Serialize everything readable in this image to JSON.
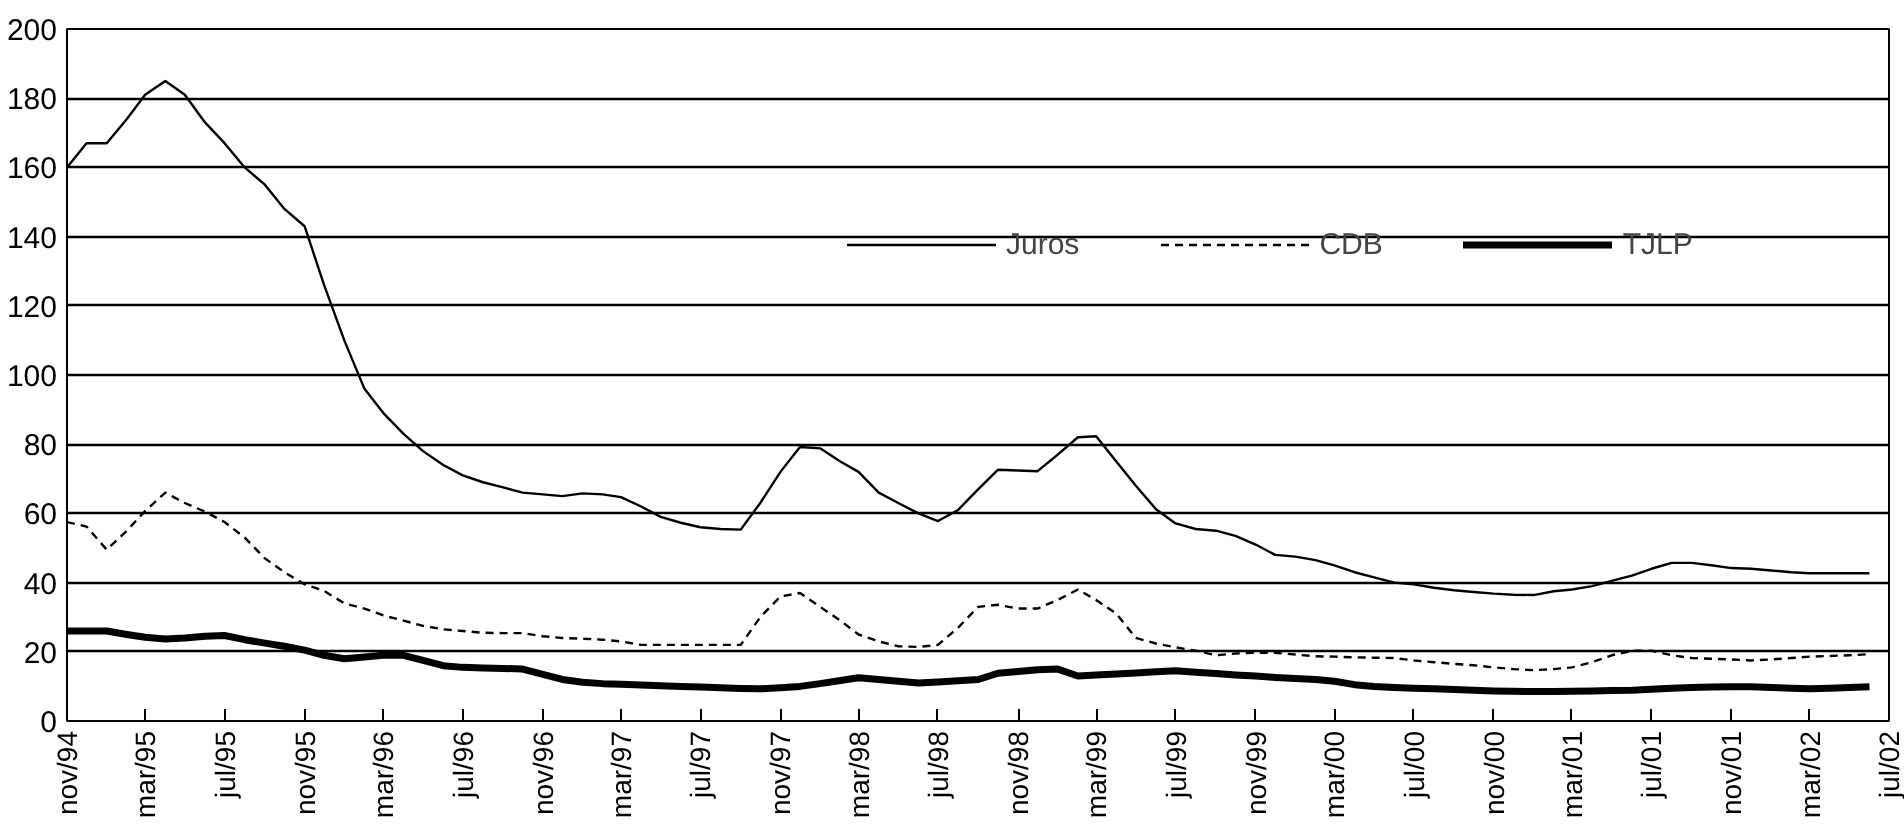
{
  "chart_data": {
    "type": "line",
    "x": [
      "1994-11",
      "1994-12",
      "1995-01",
      "1995-02",
      "1995-03",
      "1995-04",
      "1995-05",
      "1995-06",
      "1995-07",
      "1995-08",
      "1995-09",
      "1995-10",
      "1995-11",
      "1995-12",
      "1996-01",
      "1996-02",
      "1996-03",
      "1996-04",
      "1996-05",
      "1996-06",
      "1996-07",
      "1996-08",
      "1996-09",
      "1996-10",
      "1996-11",
      "1996-12",
      "1997-01",
      "1997-02",
      "1997-03",
      "1997-04",
      "1997-05",
      "1997-06",
      "1997-07",
      "1997-08",
      "1997-09",
      "1997-10",
      "1997-11",
      "1997-12",
      "1998-01",
      "1998-02",
      "1998-03",
      "1998-04",
      "1998-05",
      "1998-06",
      "1998-07",
      "1998-08",
      "1998-09",
      "1998-10",
      "1998-11",
      "1998-12",
      "1999-01",
      "1999-02",
      "1999-03",
      "1999-04",
      "1999-05",
      "1999-06",
      "1999-07",
      "1999-08",
      "1999-09",
      "1999-10",
      "1999-11",
      "1999-12",
      "2000-01",
      "2000-02",
      "2000-03",
      "2000-04",
      "2000-05",
      "2000-06",
      "2000-07",
      "2000-08",
      "2000-09",
      "2000-10",
      "2000-11",
      "2000-12",
      "2001-01",
      "2001-02",
      "2001-03",
      "2001-04",
      "2001-05",
      "2001-06",
      "2001-07",
      "2001-08",
      "2001-09",
      "2001-10",
      "2001-11",
      "2001-12",
      "2002-01",
      "2002-02",
      "2002-03",
      "2002-04",
      "2002-05",
      "2002-06"
    ],
    "series": [
      {
        "name": "Juros",
        "color": "#000000",
        "line_style": "solid",
        "values": [
          160,
          167,
          167,
          174,
          181,
          185,
          181,
          173,
          167,
          160,
          155,
          148,
          143,
          126,
          110,
          96,
          89,
          83,
          78,
          74,
          71,
          69,
          67.5,
          66,
          65.5,
          65,
          65.8,
          65.5,
          64.7,
          62,
          59,
          57.3,
          56,
          55.5,
          55.3,
          63,
          72,
          79.2,
          78.8,
          75,
          72,
          66,
          63,
          60,
          57.8,
          61,
          67,
          72.6,
          72.4,
          72.2,
          77,
          82,
          82.3,
          75,
          68,
          61.2,
          57.1,
          55.5,
          55,
          53.5,
          51,
          48,
          47.5,
          46.5,
          45,
          43,
          41.5,
          40,
          39.5,
          38.5,
          37.8,
          37.3,
          36.8,
          36.5,
          36.4,
          37.5,
          38,
          39,
          40.5,
          42,
          44,
          45.7,
          45.7,
          45,
          44.2,
          44,
          43.5,
          43,
          42.7,
          42.7,
          42.7,
          42.7
        ]
      },
      {
        "name": "CDB",
        "color": "#000000",
        "line_style": "dashed",
        "values": [
          57.5,
          56.2,
          49.5,
          55,
          60.7,
          66,
          63,
          60.5,
          57.5,
          53,
          47,
          43,
          39.5,
          37.6,
          34,
          32.5,
          30.5,
          29,
          27.5,
          26.5,
          26,
          25.5,
          25.4,
          25.4,
          24.5,
          24,
          23.8,
          23.5,
          23,
          22,
          22,
          22,
          22,
          22,
          22,
          30,
          36,
          37,
          33,
          29,
          25,
          23,
          21.6,
          21.4,
          22,
          27,
          33,
          33.6,
          32.5,
          32.5,
          35,
          38,
          35,
          31,
          24,
          22.4,
          21.3,
          20.3,
          19,
          19.5,
          19.7,
          19.7,
          19.2,
          18.7,
          18.6,
          18.4,
          18.3,
          18.2,
          17.5,
          17,
          16.5,
          16.1,
          15.5,
          15,
          14.7,
          15,
          15.5,
          17,
          19,
          20.3,
          20.3,
          19,
          18.2,
          18,
          17.8,
          17.5,
          17.8,
          18.2,
          18.6,
          18.8,
          19,
          19.3
        ]
      },
      {
        "name": "TJLP",
        "color": "#000000",
        "line_style": "solid",
        "values": [
          26,
          26,
          26,
          25,
          24.2,
          23.7,
          24,
          24.5,
          24.7,
          23.5,
          22.5,
          21.6,
          20.5,
          19,
          18,
          18.5,
          19,
          19,
          17.5,
          16,
          15.5,
          15.3,
          15.2,
          15,
          13.5,
          12,
          11.2,
          10.8,
          10.6,
          10.4,
          10.2,
          10,
          9.8,
          9.6,
          9.4,
          9.3,
          9.6,
          10,
          10.8,
          11.7,
          12.5,
          12,
          11.5,
          11,
          11.3,
          11.6,
          12,
          13.8,
          14.3,
          14.8,
          15,
          13,
          13.3,
          13.6,
          13.9,
          14.2,
          14.5,
          14.1,
          13.7,
          13.3,
          13,
          12.6,
          12.3,
          12,
          11.5,
          10.5,
          10,
          9.7,
          9.5,
          9.3,
          9.1,
          8.9,
          8.7,
          8.6,
          8.5,
          8.5,
          8.6,
          8.7,
          8.8,
          8.9,
          9.2,
          9.5,
          9.7,
          9.8,
          9.9,
          9.9,
          9.7,
          9.5,
          9.3,
          9.5,
          9.7,
          9.9
        ]
      }
    ],
    "xlim": [
      "1994-11",
      "2002-07"
    ],
    "xticks": [
      {
        "value": "1994-11",
        "label": "nov/94"
      },
      {
        "value": "1995-03",
        "label": "mar/95"
      },
      {
        "value": "1995-07",
        "label": "jul/95"
      },
      {
        "value": "1995-11",
        "label": "nov/95"
      },
      {
        "value": "1996-03",
        "label": "mar/96"
      },
      {
        "value": "1996-07",
        "label": "jul/96"
      },
      {
        "value": "1996-11",
        "label": "nov/96"
      },
      {
        "value": "1997-03",
        "label": "mar/97"
      },
      {
        "value": "1997-07",
        "label": "jul/97"
      },
      {
        "value": "1997-11",
        "label": "nov/97"
      },
      {
        "value": "1998-03",
        "label": "mar/98"
      },
      {
        "value": "1998-07",
        "label": "jul/98"
      },
      {
        "value": "1998-11",
        "label": "nov/98"
      },
      {
        "value": "1999-03",
        "label": "mar/99"
      },
      {
        "value": "1999-07",
        "label": "jul/99"
      },
      {
        "value": "1999-11",
        "label": "nov/99"
      },
      {
        "value": "2000-03",
        "label": "mar/00"
      },
      {
        "value": "2000-07",
        "label": "jul/00"
      },
      {
        "value": "2000-11",
        "label": "nov/00"
      },
      {
        "value": "2001-03",
        "label": "mar/01"
      },
      {
        "value": "2001-07",
        "label": "jul/01"
      },
      {
        "value": "2001-11",
        "label": "nov/01"
      },
      {
        "value": "2002-03",
        "label": "mar/02"
      },
      {
        "value": "2002-07",
        "label": "jul/02"
      }
    ],
    "ylim": [
      0,
      200
    ],
    "yticks": [
      0,
      20,
      40,
      60,
      80,
      100,
      120,
      140,
      160,
      180,
      200
    ],
    "grid": "y",
    "legend": "top right",
    "marker": "none"
  }
}
